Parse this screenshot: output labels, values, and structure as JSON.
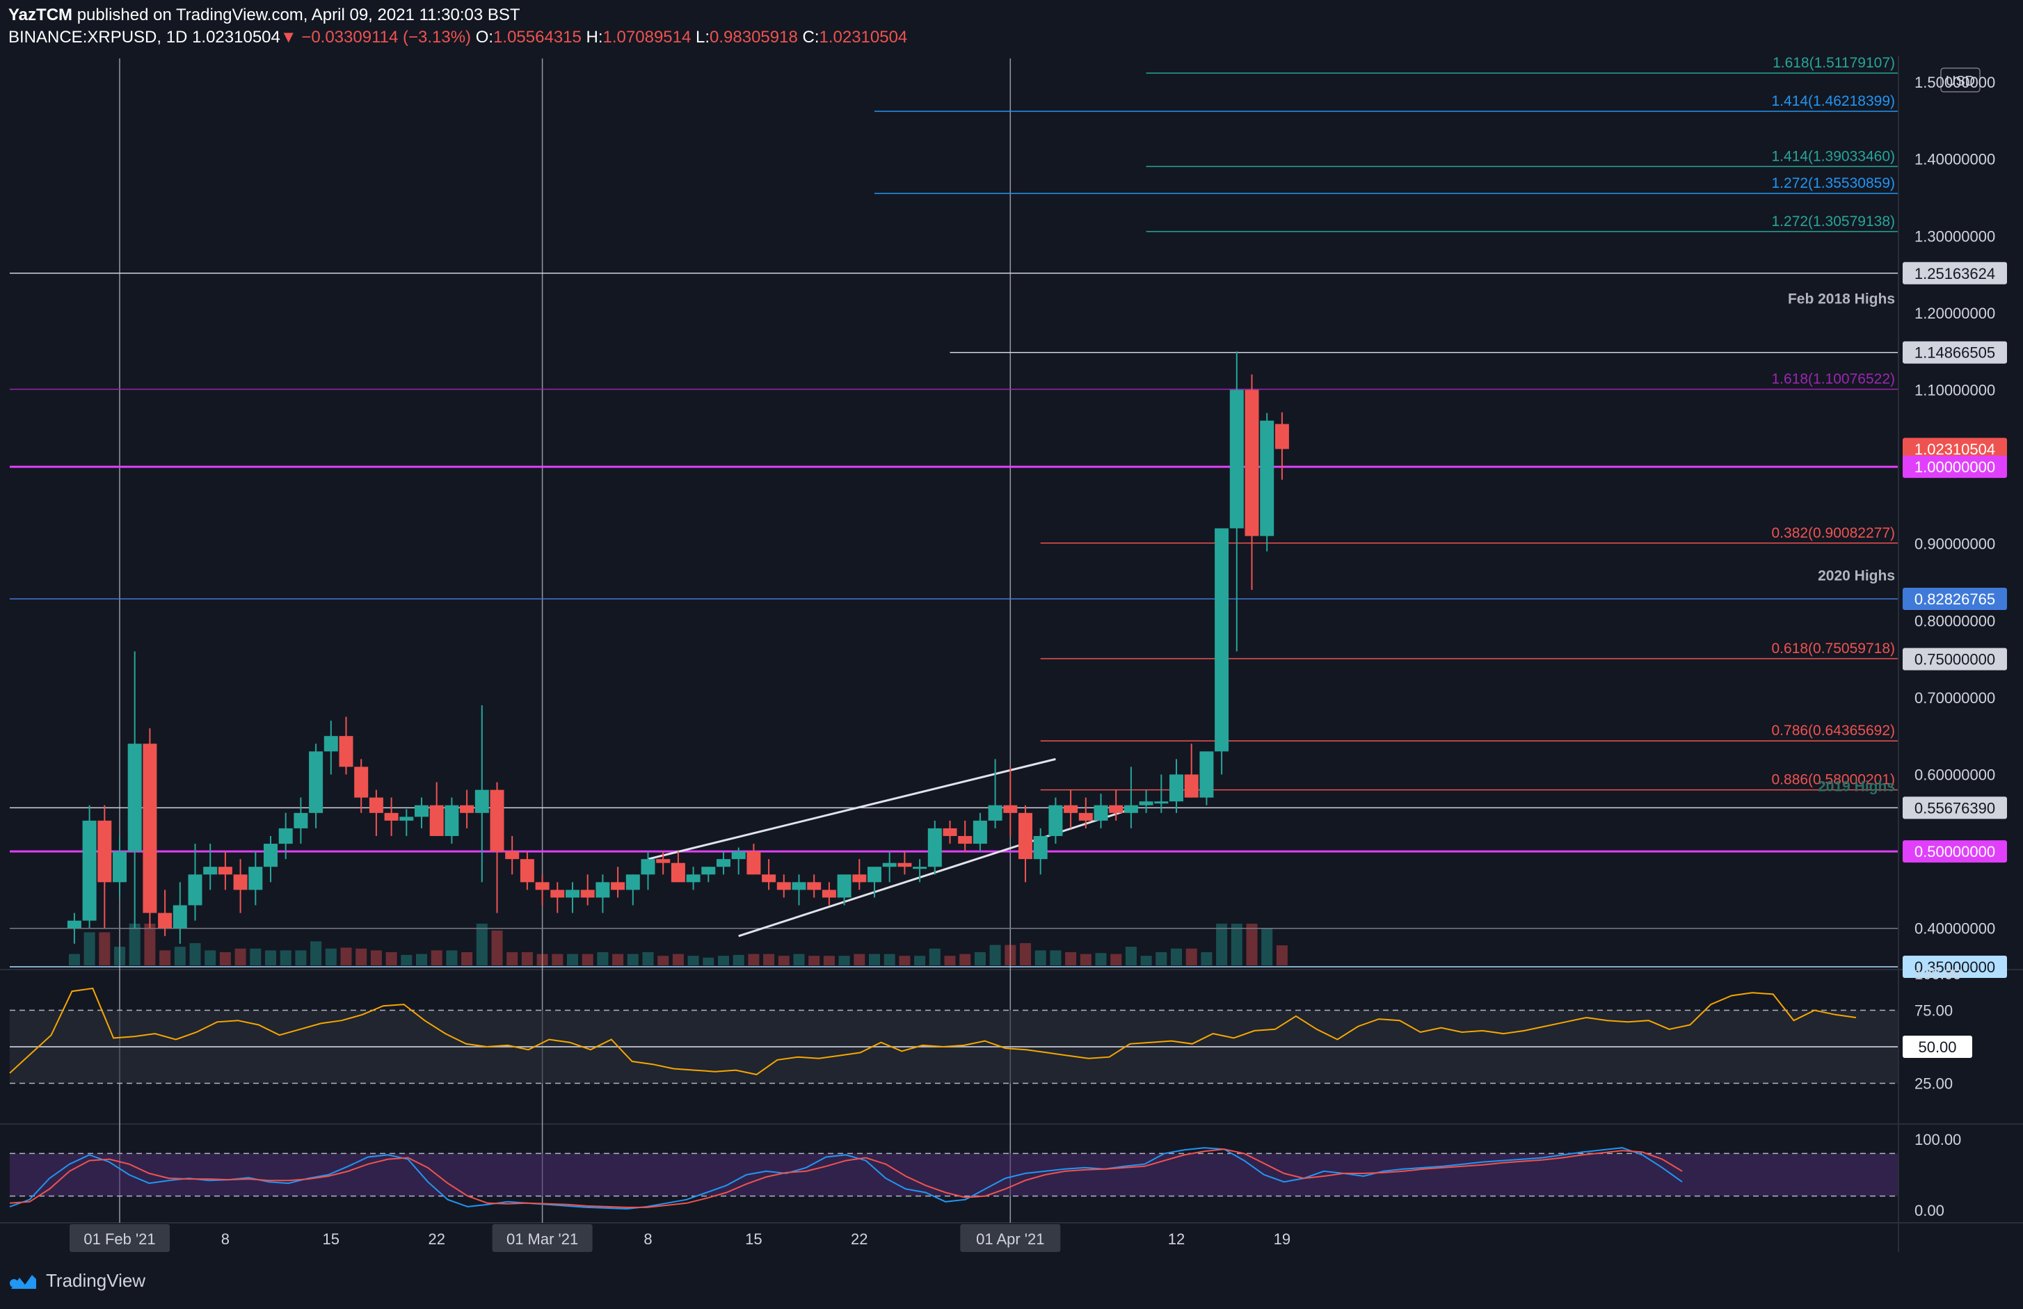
{
  "header": {
    "user": "YazTCM",
    "published_text": "published on TradingView.com, April 09, 2021 11:30:03 BST",
    "symbol": "BINANCE:XRPUSD, 1D",
    "last": "1.02310504",
    "arrow": "▼",
    "change": "−0.03309114 (−3.13%)",
    "o_label": "O:",
    "o_value": "1.05564315",
    "h_label": "H:",
    "h_value": "1.07089514",
    "l_label": "L:",
    "l_value": "0.98305918",
    "c_label": "C:",
    "c_value": "1.02310504"
  },
  "footer": {
    "brand": "TradingView"
  },
  "colors": {
    "background": "#131722",
    "up": "#26a69a",
    "down": "#ef5350",
    "magenta": "#e040fb",
    "purple": "#9c27b0",
    "teal_fib": "#26a69a",
    "blue_fib": "#2196f3",
    "grid": "#2a2e39",
    "text": "#d1d4dc"
  },
  "chart_data": [
    {
      "type": "candlestick",
      "title": "",
      "y_scale": "linear",
      "ylim": [
        0.35,
        1.52
      ],
      "currency": "USD",
      "x_ticks": [
        "01 Feb '21",
        "8",
        "15",
        "22",
        "01 Mar '21",
        "8",
        "15",
        "22",
        "01 Apr '21",
        "12",
        "19"
      ],
      "x_tick_days": [
        0,
        7,
        14,
        21,
        28,
        35,
        42,
        49,
        59,
        70,
        77
      ],
      "highlighted_x_ticks": [
        "01 Feb '21",
        "01 Mar '21",
        "01 Apr '21"
      ],
      "vertical_lines_days": [
        0,
        28,
        59
      ],
      "y_ticks": [
        "1.50000000",
        "1.40000000",
        "1.30000000",
        "1.20000000",
        "1.10000000",
        "0.90000000",
        "0.80000000",
        "0.70000000",
        "0.60000000",
        "0.40000000"
      ],
      "y_tick_values": [
        1.5,
        1.4,
        1.3,
        1.2,
        1.1,
        0.9,
        0.8,
        0.7,
        0.6,
        0.4
      ],
      "price_badges": [
        {
          "text": "1.25163624",
          "value": 1.25163624,
          "bg": "#d1d4dc",
          "fg": "#131722"
        },
        {
          "text": "1.14866505",
          "value": 1.14866505,
          "bg": "#d1d4dc",
          "fg": "#131722"
        },
        {
          "text": "1.02310504",
          "value": 1.02310504,
          "bg": "#ef5350",
          "fg": "#ffffff"
        },
        {
          "text": "1.00000000",
          "value": 1.0,
          "bg": "#e040fb",
          "fg": "#ffffff"
        },
        {
          "text": "0.82826765",
          "value": 0.82826765,
          "bg": "#3f7ad9",
          "fg": "#ffffff"
        },
        {
          "text": "0.75000000",
          "value": 0.75,
          "bg": "#d1d4dc",
          "fg": "#131722"
        },
        {
          "text": "0.55676390",
          "value": 0.5567639,
          "bg": "#d1d4dc",
          "fg": "#131722"
        },
        {
          "text": "0.50000000",
          "value": 0.5,
          "bg": "#e040fb",
          "fg": "#ffffff"
        },
        {
          "text": "0.35000000",
          "value": 0.35,
          "bg": "#b2dfff",
          "fg": "#131722"
        }
      ],
      "horizontal_levels": [
        {
          "label": "1.618(1.51179107)",
          "value": 1.51179107,
          "color": "#26a69a",
          "from_day": 68
        },
        {
          "label": "1.414(1.46218399)",
          "value": 1.46218399,
          "color": "#2196f3",
          "from_day": 50
        },
        {
          "label": "1.414(1.39033460)",
          "value": 1.3903346,
          "color": "#26a69a",
          "from_day": 68
        },
        {
          "label": "1.272(1.35530859)",
          "value": 1.35530859,
          "color": "#2196f3",
          "from_day": 50
        },
        {
          "label": "1.272(1.30579138)",
          "value": 1.30579138,
          "color": "#26a69a",
          "from_day": 68
        },
        {
          "label": "",
          "value": 1.25163624,
          "color": "#d1d4dc",
          "from_day": -8
        },
        {
          "label": "Feb 2018 Highs",
          "value": 1.205,
          "color": "none",
          "from_day": -8
        },
        {
          "label": "",
          "value": 1.14866505,
          "color": "#d1d4dc",
          "from_day": 55
        },
        {
          "label": "1.618(1.10076522)",
          "value": 1.10076522,
          "color": "#9c27b0",
          "from_day": -8
        },
        {
          "label": "",
          "value": 1.0,
          "color": "#e040fb",
          "from_day": -8
        },
        {
          "label": "0.382(0.90082277)",
          "value": 0.90082277,
          "color": "#ef5350",
          "from_day": 61
        },
        {
          "label": "",
          "value": 0.82826765,
          "color": "#3f7ad9",
          "from_day": -8
        },
        {
          "label": "2020 Highs",
          "value": 0.845,
          "color": "none",
          "from_day": -8
        },
        {
          "label": "0.618(0.75059718)",
          "value": 0.75059718,
          "color": "#ef5350",
          "from_day": 61
        },
        {
          "label": "0.786(0.64365692)",
          "value": 0.64365692,
          "color": "#ef5350",
          "from_day": 61
        },
        {
          "label": "0.886(0.58000201)",
          "value": 0.58000201,
          "color": "#ef5350",
          "from_day": 61
        },
        {
          "label": "",
          "value": 0.5567639,
          "color": "#d1d4dc",
          "from_day": -8
        },
        {
          "label": "2019 Highs",
          "value": 0.571,
          "color": "none",
          "from_day": -8
        },
        {
          "label": "",
          "value": 0.5,
          "color": "#e040fb",
          "from_day": -8
        },
        {
          "label": "",
          "value": 0.4,
          "color": "#787b86",
          "from_day": -8
        },
        {
          "label": "",
          "value": 0.35,
          "color": "#b2dfff",
          "from_day": -8
        }
      ],
      "trendlines": [
        {
          "from": [
            35,
            0.49
          ],
          "to": [
            62,
            0.62
          ]
        },
        {
          "from": [
            41,
            0.39
          ],
          "to": [
            67,
            0.555
          ]
        }
      ],
      "candles_start_day": -3,
      "candles": [
        [
          0.4,
          0.42,
          0.38,
          0.41
        ],
        [
          0.41,
          0.56,
          0.4,
          0.54
        ],
        [
          0.54,
          0.56,
          0.4,
          0.46
        ],
        [
          0.46,
          0.52,
          0.44,
          0.5
        ],
        [
          0.5,
          0.76,
          0.4,
          0.64
        ],
        [
          0.64,
          0.66,
          0.4,
          0.42
        ],
        [
          0.42,
          0.45,
          0.39,
          0.4
        ],
        [
          0.4,
          0.46,
          0.38,
          0.43
        ],
        [
          0.43,
          0.51,
          0.41,
          0.47
        ],
        [
          0.47,
          0.51,
          0.45,
          0.48
        ],
        [
          0.48,
          0.5,
          0.45,
          0.47
        ],
        [
          0.47,
          0.49,
          0.42,
          0.45
        ],
        [
          0.45,
          0.5,
          0.43,
          0.48
        ],
        [
          0.48,
          0.52,
          0.46,
          0.51
        ],
        [
          0.51,
          0.55,
          0.49,
          0.53
        ],
        [
          0.53,
          0.57,
          0.51,
          0.55
        ],
        [
          0.55,
          0.64,
          0.53,
          0.63
        ],
        [
          0.63,
          0.67,
          0.6,
          0.65
        ],
        [
          0.65,
          0.675,
          0.6,
          0.61
        ],
        [
          0.61,
          0.62,
          0.55,
          0.57
        ],
        [
          0.57,
          0.58,
          0.52,
          0.55
        ],
        [
          0.55,
          0.57,
          0.52,
          0.54
        ],
        [
          0.54,
          0.555,
          0.52,
          0.545
        ],
        [
          0.545,
          0.57,
          0.53,
          0.56
        ],
        [
          0.56,
          0.59,
          0.53,
          0.52
        ],
        [
          0.52,
          0.57,
          0.51,
          0.56
        ],
        [
          0.56,
          0.58,
          0.53,
          0.55
        ],
        [
          0.55,
          0.69,
          0.46,
          0.58
        ],
        [
          0.58,
          0.59,
          0.42,
          0.5
        ],
        [
          0.5,
          0.52,
          0.47,
          0.49
        ],
        [
          0.49,
          0.5,
          0.45,
          0.46
        ],
        [
          0.46,
          0.47,
          0.43,
          0.45
        ],
        [
          0.45,
          0.46,
          0.42,
          0.44
        ],
        [
          0.44,
          0.46,
          0.42,
          0.45
        ],
        [
          0.45,
          0.47,
          0.43,
          0.44
        ],
        [
          0.44,
          0.47,
          0.42,
          0.46
        ],
        [
          0.46,
          0.48,
          0.44,
          0.45
        ],
        [
          0.45,
          0.47,
          0.43,
          0.47
        ],
        [
          0.47,
          0.5,
          0.45,
          0.49
        ],
        [
          0.49,
          0.5,
          0.47,
          0.485
        ],
        [
          0.485,
          0.5,
          0.46,
          0.46
        ],
        [
          0.46,
          0.48,
          0.45,
          0.47
        ],
        [
          0.47,
          0.48,
          0.46,
          0.48
        ],
        [
          0.48,
          0.5,
          0.47,
          0.49
        ],
        [
          0.49,
          0.505,
          0.47,
          0.5
        ],
        [
          0.5,
          0.51,
          0.47,
          0.47
        ],
        [
          0.47,
          0.49,
          0.45,
          0.46
        ],
        [
          0.46,
          0.47,
          0.44,
          0.45
        ],
        [
          0.45,
          0.47,
          0.43,
          0.46
        ],
        [
          0.46,
          0.47,
          0.44,
          0.45
        ],
        [
          0.45,
          0.46,
          0.43,
          0.44
        ],
        [
          0.44,
          0.46,
          0.43,
          0.47
        ]
      ],
      "candles_tail": [
        [
          0.47,
          0.49,
          0.45,
          0.46
        ],
        [
          0.46,
          0.48,
          0.44,
          0.48
        ],
        [
          0.48,
          0.5,
          0.46,
          0.485
        ],
        [
          0.485,
          0.5,
          0.47,
          0.48
        ],
        [
          0.48,
          0.49,
          0.46,
          0.48
        ],
        [
          0.48,
          0.54,
          0.47,
          0.53
        ],
        [
          0.53,
          0.54,
          0.51,
          0.52
        ],
        [
          0.52,
          0.54,
          0.5,
          0.51
        ],
        [
          0.51,
          0.55,
          0.5,
          0.54
        ],
        [
          0.54,
          0.62,
          0.53,
          0.56
        ],
        [
          0.56,
          0.61,
          0.52,
          0.55
        ],
        [
          0.55,
          0.56,
          0.46,
          0.49
        ],
        [
          0.49,
          0.53,
          0.47,
          0.52
        ],
        [
          0.52,
          0.57,
          0.51,
          0.56
        ],
        [
          0.56,
          0.58,
          0.53,
          0.55
        ],
        [
          0.55,
          0.57,
          0.53,
          0.54
        ],
        [
          0.54,
          0.575,
          0.53,
          0.56
        ],
        [
          0.56,
          0.58,
          0.54,
          0.55
        ],
        [
          0.55,
          0.61,
          0.53,
          0.56
        ],
        [
          0.56,
          0.58,
          0.55,
          0.565
        ],
        [
          0.565,
          0.6,
          0.55,
          0.565
        ],
        [
          0.565,
          0.62,
          0.55,
          0.6
        ],
        [
          0.6,
          0.64,
          0.57,
          0.57
        ],
        [
          0.57,
          0.61,
          0.56,
          0.63
        ],
        [
          0.63,
          0.92,
          0.6,
          0.92
        ],
        [
          0.92,
          1.15,
          0.76,
          1.1
        ],
        [
          1.1,
          1.12,
          0.84,
          0.91
        ],
        [
          0.91,
          1.07,
          0.89,
          1.06
        ],
        [
          1.0556,
          1.0709,
          0.9831,
          1.0231
        ]
      ],
      "rsi": {
        "levels": [
          "100.00",
          "75.00",
          "50.00",
          "25.00"
        ],
        "level_values": [
          100,
          75,
          50,
          25
        ],
        "values": [
          32,
          45,
          58,
          88,
          90,
          56,
          57,
          59,
          55,
          60,
          67,
          68,
          65,
          58,
          62,
          66,
          68,
          72,
          78,
          79,
          68,
          59,
          52,
          50,
          51,
          48,
          55,
          53,
          48,
          55,
          40,
          38,
          35,
          34,
          33,
          34,
          31,
          41,
          43,
          42,
          44,
          46,
          53,
          47,
          51,
          50,
          51,
          54,
          49,
          48,
          46,
          44,
          42,
          43,
          52,
          53,
          54,
          52,
          59,
          56,
          61,
          62,
          71,
          62,
          55,
          64,
          69,
          68,
          60,
          63,
          60,
          61,
          59,
          61,
          64,
          67,
          70,
          68,
          67,
          68,
          62,
          65,
          79,
          85,
          87,
          86,
          68,
          75,
          72,
          70
        ]
      },
      "stoch_rsi": {
        "levels": [
          "100.00",
          "0.00"
        ],
        "level_values": [
          100,
          0
        ],
        "k": [
          5,
          15,
          45,
          65,
          78,
          68,
          50,
          38,
          42,
          45,
          42,
          43,
          46,
          40,
          38,
          45,
          50,
          62,
          75,
          78,
          72,
          40,
          15,
          5,
          8,
          12,
          10,
          8,
          6,
          4,
          3,
          2,
          5,
          10,
          15,
          25,
          35,
          50,
          55,
          52,
          60,
          75,
          78,
          70,
          45,
          30,
          25,
          12,
          15,
          30,
          45,
          52,
          55,
          58,
          60,
          58,
          62,
          65,
          80,
          85,
          88,
          86,
          70,
          50,
          40,
          45,
          55,
          52,
          48,
          55,
          58,
          60,
          62,
          65,
          68,
          70,
          72,
          74,
          78,
          82,
          85,
          88,
          78,
          60,
          40
        ],
        "d": [
          10,
          12,
          30,
          55,
          70,
          72,
          65,
          52,
          45,
          44,
          44,
          43,
          44,
          42,
          42,
          44,
          48,
          55,
          65,
          72,
          74,
          60,
          38,
          20,
          10,
          9,
          10,
          9,
          8,
          6,
          5,
          4,
          4,
          7,
          10,
          17,
          25,
          37,
          47,
          53,
          55,
          62,
          70,
          74,
          65,
          48,
          35,
          25,
          18,
          20,
          30,
          42,
          50,
          55,
          57,
          58,
          60,
          62,
          70,
          78,
          83,
          86,
          80,
          66,
          52,
          45,
          48,
          52,
          52,
          53,
          55,
          58,
          60,
          62,
          64,
          67,
          69,
          71,
          74,
          78,
          81,
          84,
          82,
          72,
          55
        ]
      }
    }
  ]
}
